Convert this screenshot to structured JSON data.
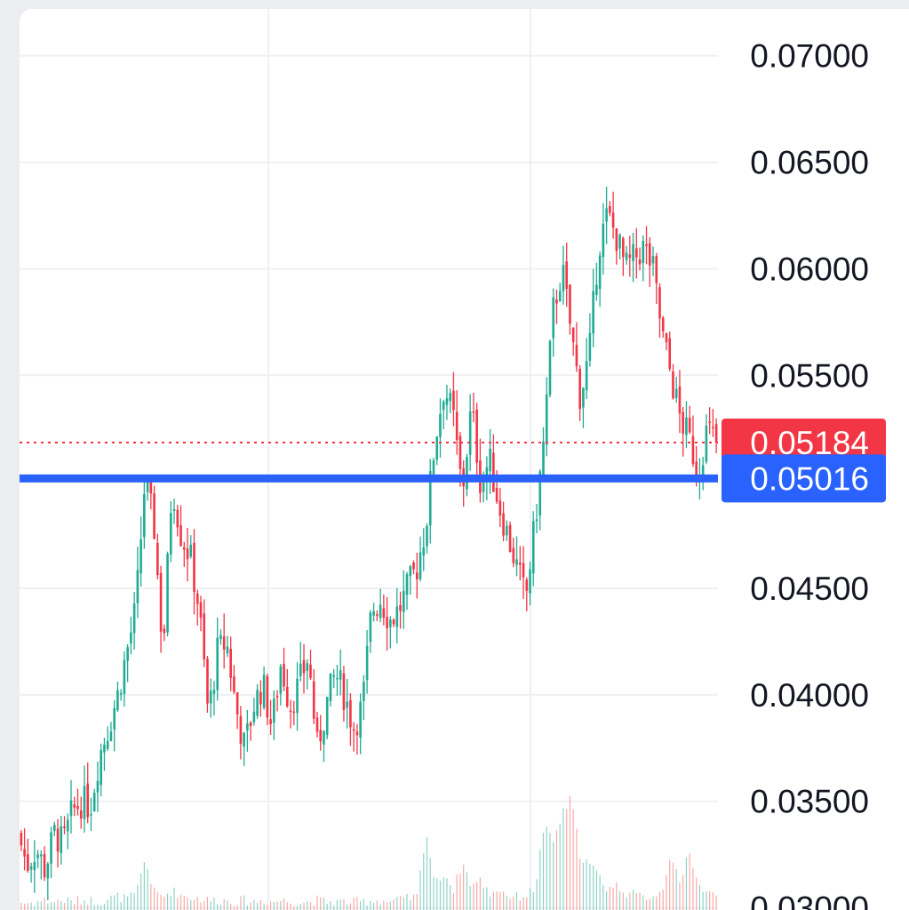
{
  "colors": {
    "background": "#ffffff",
    "grid": "#eef0f3",
    "up": "#22ab94",
    "down": "#f23645",
    "last_price": "#f23645",
    "support_line": "#2962ff",
    "volume_up": "#8fd3c6",
    "volume_down": "#f7a9a7"
  },
  "chart_data": {
    "type": "candlestick",
    "y_axis_ticks": [
      "0.07000",
      "0.06500",
      "0.06000",
      "0.05500",
      "0.04500",
      "0.04000",
      "0.03500",
      "0.03000"
    ],
    "ylim": [
      0.0299,
      0.0722
    ],
    "grid": true,
    "price_scale_position": "right",
    "last_price": {
      "value": 0.05184,
      "label": "0.05184",
      "style": "dotted"
    },
    "horizontal_line": {
      "value": 0.05016,
      "label": "0.05016",
      "style": "solid"
    },
    "price_path": [
      0.0335,
      0.032,
      0.0328,
      0.0318,
      0.0335,
      0.033,
      0.0345,
      0.035,
      0.0348,
      0.0372,
      0.0385,
      0.04,
      0.042,
      0.044,
      0.05,
      0.048,
      0.042,
      0.05,
      0.0475,
      0.0465,
      0.044,
      0.039,
      0.042,
      0.0425,
      0.0395,
      0.0375,
      0.0395,
      0.0405,
      0.0385,
      0.0415,
      0.0395,
      0.0405,
      0.0418,
      0.0375,
      0.0395,
      0.041,
      0.04,
      0.0385,
      0.0395,
      0.044,
      0.0445,
      0.0435,
      0.044,
      0.045,
      0.046,
      0.048,
      0.052,
      0.0545,
      0.053,
      0.0495,
      0.0535,
      0.05,
      0.051,
      0.049,
      0.0475,
      0.046,
      0.0445,
      0.048,
      0.052,
      0.058,
      0.06,
      0.057,
      0.054,
      0.056,
      0.061,
      0.0625,
      0.0615,
      0.06,
      0.0605,
      0.061,
      0.06,
      0.057,
      0.055,
      0.053,
      0.052,
      0.0505,
      0.0525,
      0.05184
    ],
    "volume_path": [
      0.02,
      0.01,
      0.02,
      0.03,
      0.02,
      0.03,
      0.02,
      0.03,
      0.03,
      0.02,
      0.04,
      0.05,
      0.04,
      0.06,
      0.28,
      0.08,
      0.05,
      0.09,
      0.06,
      0.05,
      0.04,
      0.03,
      0.03,
      0.03,
      0.02,
      0.03,
      0.02,
      0.03,
      0.02,
      0.03,
      0.02,
      0.02,
      0.02,
      0.03,
      0.02,
      0.02,
      0.02,
      0.02,
      0.02,
      0.03,
      0.03,
      0.02,
      0.03,
      0.04,
      0.05,
      0.45,
      0.12,
      0.2,
      0.09,
      0.26,
      0.12,
      0.15,
      0.07,
      0.1,
      0.06,
      0.05,
      0.06,
      0.1,
      0.48,
      0.38,
      0.55,
      0.65,
      0.3,
      0.25,
      0.18,
      0.1,
      0.12,
      0.08,
      0.06,
      0.05,
      0.06,
      0.08,
      0.33,
      0.1,
      0.35,
      0.12,
      0.08,
      0.05
    ]
  }
}
